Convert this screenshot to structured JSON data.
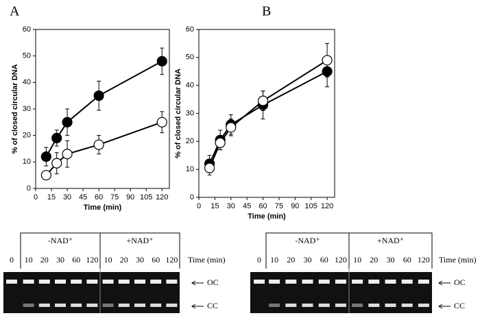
{
  "chart_data": [
    {
      "type": "line",
      "panel": "A",
      "xlabel": "Time (min)",
      "ylabel": "% of closed circular DNA",
      "xlim": [
        0,
        127
      ],
      "ylim": [
        0,
        60
      ],
      "xticks": [
        0,
        15,
        30,
        45,
        60,
        75,
        90,
        105,
        120
      ],
      "yticks": [
        0,
        10,
        20,
        30,
        40,
        50,
        60
      ],
      "x": [
        10,
        20,
        30,
        60,
        120
      ],
      "series": [
        {
          "marker": "filled",
          "color": "#000000",
          "values": [
            12,
            19,
            25,
            35,
            48
          ],
          "errors": [
            3.5,
            3,
            5,
            5.5,
            5
          ]
        },
        {
          "marker": "open",
          "color": "#000000",
          "values": [
            5,
            9.5,
            13,
            16.5,
            25
          ],
          "errors": [
            1,
            4,
            5,
            3.5,
            4
          ]
        }
      ]
    },
    {
      "type": "line",
      "panel": "B",
      "xlabel": "Time (min)",
      "ylabel": "% of closed circular DNA",
      "xlim": [
        0,
        127
      ],
      "ylim": [
        0,
        60
      ],
      "xticks": [
        0,
        15,
        30,
        45,
        60,
        75,
        90,
        105,
        120
      ],
      "yticks": [
        0,
        10,
        20,
        30,
        40,
        50,
        60
      ],
      "x": [
        10,
        20,
        30,
        60,
        120
      ],
      "series": [
        {
          "marker": "filled",
          "color": "#000000",
          "values": [
            12,
            20.5,
            26,
            33,
            45
          ],
          "errors": [
            3,
            3.5,
            3.5,
            5,
            5.5
          ]
        },
        {
          "marker": "open",
          "color": "#000000",
          "values": [
            10.5,
            19.5,
            25,
            34.5,
            49
          ],
          "errors": [
            2.5,
            2.5,
            3,
            3.5,
            6
          ]
        }
      ]
    }
  ],
  "gels": [
    {
      "control": "0",
      "groups": [
        "-NAD⁺",
        "+NAD⁺"
      ],
      "lanes": [
        10,
        20,
        30,
        60,
        120,
        10,
        20,
        30,
        60,
        120
      ],
      "time_label": "Time (min)",
      "bands": [
        "OC",
        "CC"
      ]
    },
    {
      "control": "0",
      "groups": [
        "-NAD⁺",
        "+NAD⁺"
      ],
      "lanes": [
        10,
        20,
        30,
        60,
        120,
        10,
        20,
        30,
        60,
        120
      ],
      "time_label": "Time (min)",
      "bands": [
        "OC",
        "CC"
      ]
    }
  ]
}
